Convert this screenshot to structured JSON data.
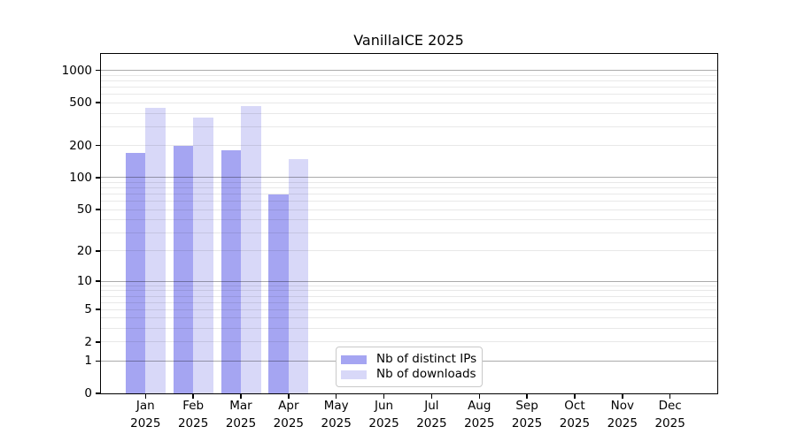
{
  "title": "VanillaICE 2025",
  "colors": {
    "distinct_ips_bar": "#a5a5f2",
    "downloads_bar": "#d8d8f8",
    "axis": "#000000",
    "grid_major": "rgba(0,0,0,0.33)",
    "grid_minor": "rgba(0,0,0,0.09)",
    "legend_border": "#c9c9c9"
  },
  "legend": {
    "items": [
      {
        "label": "Nb of distinct IPs",
        "key": "distinct-ips"
      },
      {
        "label": "Nb of downloads",
        "key": "downloads"
      }
    ]
  },
  "chart_data": {
    "type": "bar",
    "title": "VanillaICE 2025",
    "xlabel": "",
    "ylabel": "",
    "scale": "pseudo-log10(1+v)",
    "months": [
      "Jan",
      "Feb",
      "Mar",
      "Apr",
      "May",
      "Jun",
      "Jul",
      "Aug",
      "Sep",
      "Oct",
      "Nov",
      "Dec"
    ],
    "year_label": "2025",
    "series": [
      {
        "name": "Nb of distinct IPs",
        "key": "distinct-ips",
        "color": "#a5a5f2",
        "values": [
          170,
          200,
          180,
          70,
          null,
          null,
          null,
          null,
          null,
          null,
          null,
          null
        ]
      },
      {
        "name": "Nb of downloads",
        "key": "downloads",
        "color": "#d8d8f8",
        "values": [
          445,
          365,
          465,
          150,
          null,
          null,
          null,
          null,
          null,
          null,
          null,
          null
        ]
      }
    ],
    "yticks": [
      0,
      1,
      2,
      5,
      10,
      20,
      50,
      100,
      200,
      500,
      1000
    ],
    "decade_ticks": [
      1,
      10,
      100,
      1000
    ],
    "ylim": [
      0,
      1450
    ],
    "grid": "horizontal",
    "legend_position": "lower-center"
  }
}
